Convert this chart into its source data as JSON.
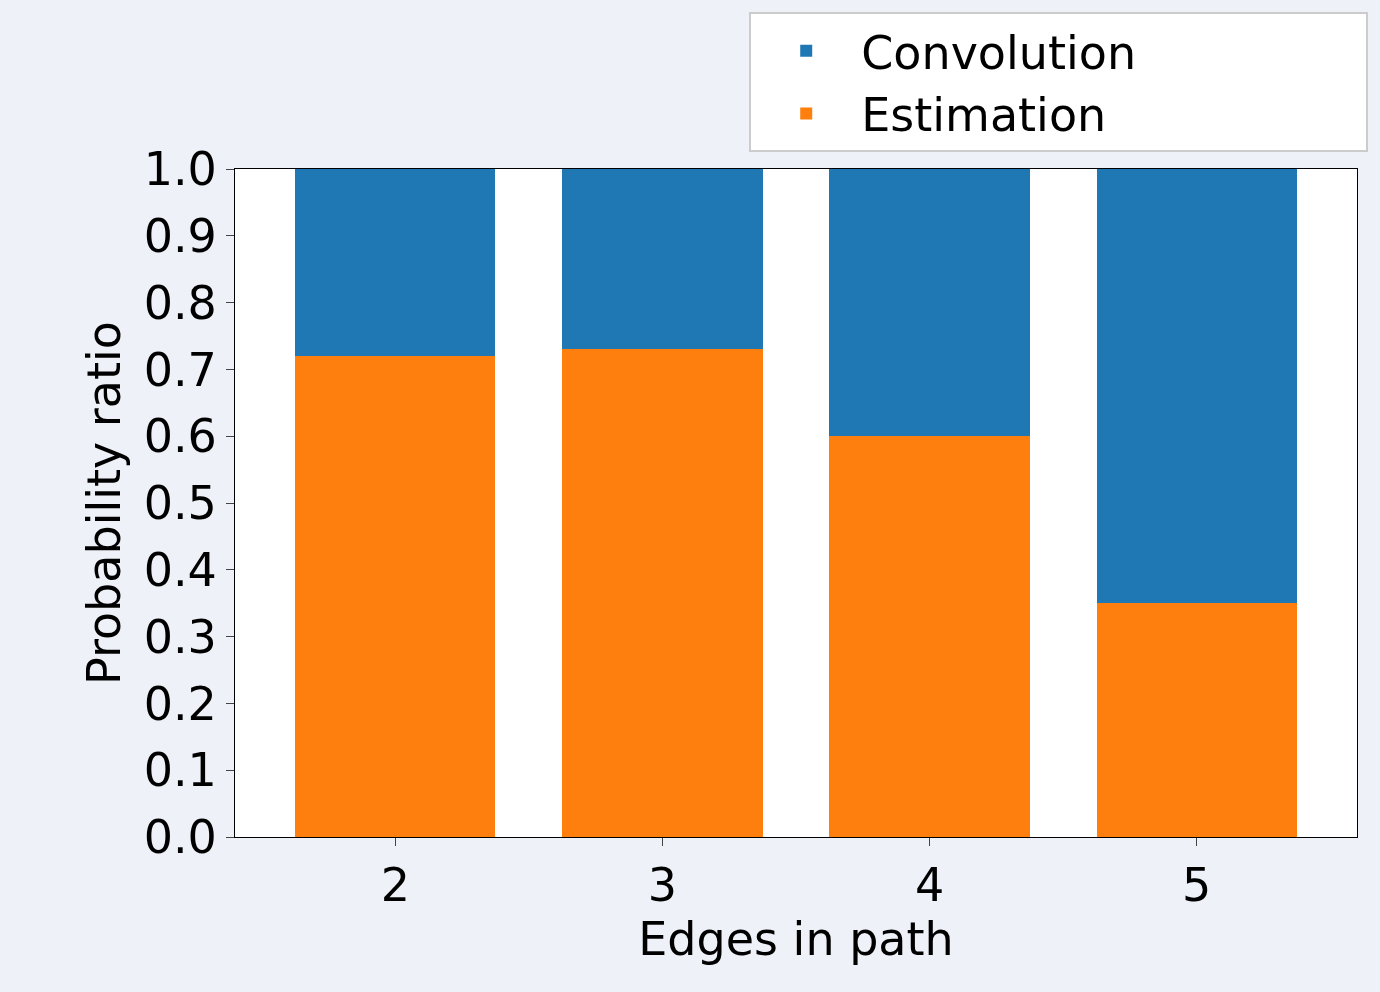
{
  "chart_data": {
    "type": "bar",
    "stacked": true,
    "xlabel": "Edges in path",
    "ylabel": "Probability ratio",
    "categories": [
      "2",
      "3",
      "4",
      "5"
    ],
    "series": [
      {
        "name": "Estimation",
        "color": "#ff7f0e",
        "values": [
          0.72,
          0.73,
          0.6,
          0.35
        ]
      },
      {
        "name": "Convolution",
        "color": "#1f77b4",
        "values": [
          0.28,
          0.27,
          0.4,
          0.65
        ]
      }
    ],
    "ylim": [
      0,
      1
    ],
    "yticks": [
      "0.0",
      0.1,
      0.2,
      0.3,
      0.4,
      0.5,
      0.6,
      0.7,
      0.8,
      0.9,
      "1.0"
    ],
    "legend": "top"
  }
}
